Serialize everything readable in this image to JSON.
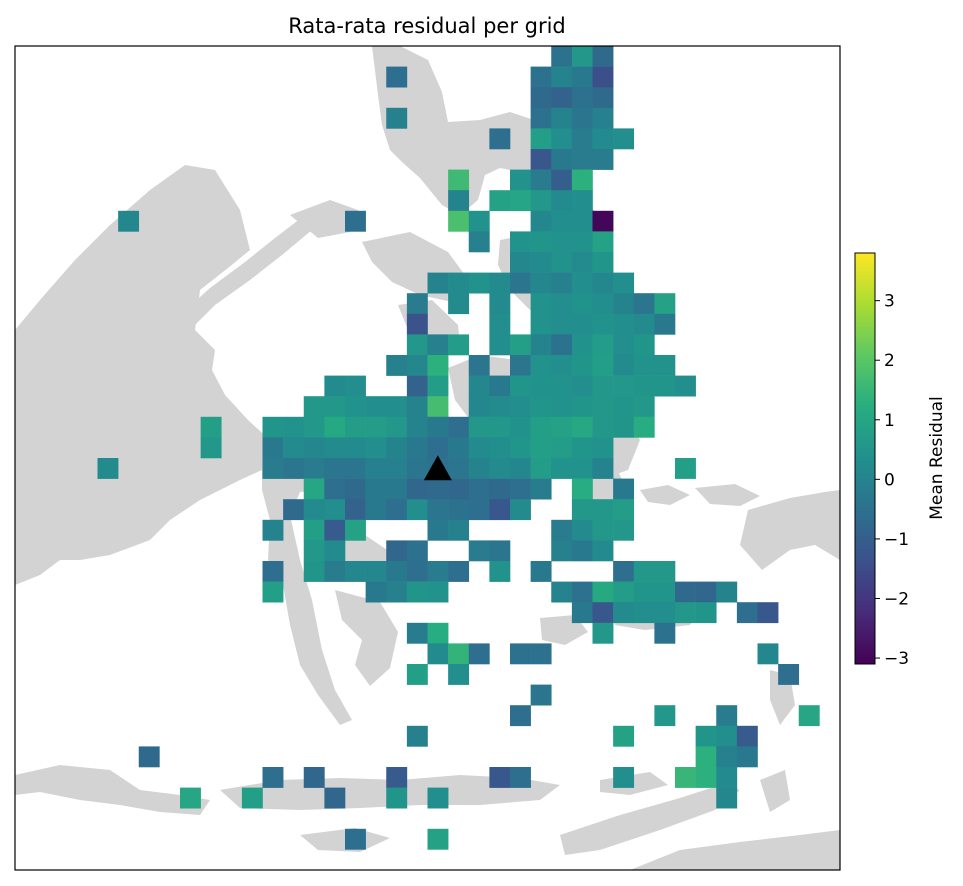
{
  "chart_data": {
    "type": "heatmap",
    "title": "Rata-rata residual per grid",
    "colorbar": {
      "label": "Mean Residual",
      "vmin": -3.1,
      "vmax": 3.8,
      "ticks": [
        {
          "value": 3,
          "label": "3"
        },
        {
          "value": 2,
          "label": "2"
        },
        {
          "value": 1,
          "label": "1"
        },
        {
          "value": 0,
          "label": "0"
        },
        {
          "value": -1,
          "label": "−1"
        },
        {
          "value": -2,
          "label": "−2"
        },
        {
          "value": -3,
          "label": "−3"
        }
      ],
      "colormap": "viridis",
      "placement": "right"
    },
    "grid": {
      "columns": 40,
      "rows": 40
    },
    "marker": {
      "shape": "triangle",
      "color": "#000000",
      "col": 20,
      "row": 20
    },
    "cells": [
      [
        26,
        0,
        -0.5
      ],
      [
        27,
        0,
        0.6
      ],
      [
        28,
        0,
        -0.7
      ],
      [
        18,
        1,
        -0.6
      ],
      [
        25,
        1,
        -0.5
      ],
      [
        26,
        1,
        0.0
      ],
      [
        27,
        1,
        -0.3
      ],
      [
        28,
        1,
        -1.4
      ],
      [
        25,
        2,
        -0.7
      ],
      [
        26,
        2,
        -0.9
      ],
      [
        27,
        2,
        -0.5
      ],
      [
        28,
        2,
        -0.7
      ],
      [
        18,
        3,
        -0.1
      ],
      [
        25,
        3,
        -0.5
      ],
      [
        26,
        3,
        0.0
      ],
      [
        27,
        3,
        -0.4
      ],
      [
        28,
        3,
        -0.1
      ],
      [
        23,
        4,
        -0.6
      ],
      [
        25,
        4,
        0.8
      ],
      [
        26,
        4,
        0.3
      ],
      [
        27,
        4,
        -0.2
      ],
      [
        28,
        4,
        0.2
      ],
      [
        29,
        4,
        0.3
      ],
      [
        25,
        5,
        -1.2
      ],
      [
        26,
        5,
        -0.3
      ],
      [
        27,
        5,
        -0.2
      ],
      [
        28,
        5,
        -0.2
      ],
      [
        21,
        6,
        1.6
      ],
      [
        24,
        6,
        0.4
      ],
      [
        25,
        6,
        -0.2
      ],
      [
        26,
        6,
        -1.0
      ],
      [
        27,
        6,
        1.3
      ],
      [
        21,
        7,
        0.0
      ],
      [
        23,
        7,
        0.9
      ],
      [
        24,
        7,
        1.0
      ],
      [
        25,
        7,
        0.6
      ],
      [
        26,
        7,
        0.2
      ],
      [
        27,
        7,
        0.3
      ],
      [
        5,
        8,
        0.1
      ],
      [
        16,
        8,
        -0.6
      ],
      [
        21,
        8,
        1.8
      ],
      [
        22,
        8,
        0.4
      ],
      [
        25,
        8,
        0.1
      ],
      [
        26,
        8,
        0.3
      ],
      [
        27,
        8,
        0.3
      ],
      [
        28,
        8,
        -3.0
      ],
      [
        22,
        9,
        -0.1
      ],
      [
        24,
        9,
        0.4
      ],
      [
        25,
        9,
        0.5
      ],
      [
        26,
        9,
        0.4
      ],
      [
        27,
        9,
        0.4
      ],
      [
        28,
        9,
        0.9
      ],
      [
        24,
        10,
        0.1
      ],
      [
        25,
        10,
        0.2
      ],
      [
        26,
        10,
        0.4
      ],
      [
        27,
        10,
        0.2
      ],
      [
        28,
        10,
        0.5
      ],
      [
        20,
        11,
        0.0
      ],
      [
        21,
        11,
        0.2
      ],
      [
        22,
        11,
        0.4
      ],
      [
        23,
        11,
        0.2
      ],
      [
        24,
        11,
        -0.4
      ],
      [
        25,
        11,
        0.1
      ],
      [
        26,
        11,
        -0.1
      ],
      [
        27,
        11,
        0.3
      ],
      [
        28,
        11,
        0.1
      ],
      [
        29,
        11,
        0.3
      ],
      [
        19,
        12,
        -0.2
      ],
      [
        21,
        12,
        0.2
      ],
      [
        23,
        12,
        0.2
      ],
      [
        25,
        12,
        0.4
      ],
      [
        26,
        12,
        0.3
      ],
      [
        27,
        12,
        0.4
      ],
      [
        28,
        12,
        0.3
      ],
      [
        29,
        12,
        0.0
      ],
      [
        30,
        12,
        -0.4
      ],
      [
        31,
        12,
        0.9
      ],
      [
        19,
        13,
        -1.3
      ],
      [
        23,
        13,
        0.3
      ],
      [
        25,
        13,
        0.4
      ],
      [
        26,
        13,
        0.3
      ],
      [
        27,
        13,
        0.3
      ],
      [
        28,
        13,
        0.4
      ],
      [
        29,
        13,
        0.3
      ],
      [
        30,
        13,
        0.2
      ],
      [
        31,
        13,
        -0.3
      ],
      [
        19,
        14,
        0.6
      ],
      [
        20,
        14,
        -0.1
      ],
      [
        21,
        14,
        0.7
      ],
      [
        23,
        14,
        0.3
      ],
      [
        24,
        14,
        0.8
      ],
      [
        25,
        14,
        0.0
      ],
      [
        26,
        14,
        -0.5
      ],
      [
        27,
        14,
        0.4
      ],
      [
        28,
        14,
        0.7
      ],
      [
        29,
        14,
        0.3
      ],
      [
        30,
        14,
        0.5
      ],
      [
        18,
        15,
        -0.1
      ],
      [
        19,
        15,
        0.1
      ],
      [
        20,
        15,
        1.3
      ],
      [
        22,
        15,
        -0.4
      ],
      [
        24,
        15,
        -0.4
      ],
      [
        25,
        15,
        0.4
      ],
      [
        26,
        15,
        0.3
      ],
      [
        27,
        15,
        0.5
      ],
      [
        28,
        15,
        0.8
      ],
      [
        29,
        15,
        0.2
      ],
      [
        30,
        15,
        0.4
      ],
      [
        31,
        15,
        0.4
      ],
      [
        15,
        16,
        0.2
      ],
      [
        16,
        16,
        0.3
      ],
      [
        19,
        16,
        -0.9
      ],
      [
        20,
        16,
        0.7
      ],
      [
        22,
        16,
        0.1
      ],
      [
        23,
        16,
        -0.3
      ],
      [
        24,
        16,
        0.5
      ],
      [
        25,
        16,
        0.4
      ],
      [
        26,
        16,
        0.4
      ],
      [
        27,
        16,
        0.3
      ],
      [
        28,
        16,
        0.6
      ],
      [
        29,
        16,
        0.6
      ],
      [
        30,
        16,
        0.5
      ],
      [
        31,
        16,
        0.5
      ],
      [
        32,
        16,
        0.3
      ],
      [
        14,
        17,
        0.6
      ],
      [
        15,
        17,
        0.6
      ],
      [
        16,
        17,
        0.4
      ],
      [
        17,
        17,
        0.3
      ],
      [
        18,
        17,
        0.3
      ],
      [
        19,
        17,
        0.0
      ],
      [
        20,
        17,
        1.7
      ],
      [
        22,
        17,
        0.1
      ],
      [
        23,
        17,
        0.2
      ],
      [
        24,
        17,
        0.3
      ],
      [
        25,
        17,
        0.5
      ],
      [
        26,
        17,
        0.4
      ],
      [
        27,
        17,
        0.5
      ],
      [
        28,
        17,
        0.6
      ],
      [
        29,
        17,
        0.5
      ],
      [
        30,
        17,
        0.6
      ],
      [
        9,
        18,
        0.8
      ],
      [
        12,
        18,
        0.5
      ],
      [
        13,
        18,
        0.4
      ],
      [
        14,
        18,
        0.6
      ],
      [
        15,
        18,
        1.1
      ],
      [
        16,
        18,
        0.7
      ],
      [
        17,
        18,
        0.7
      ],
      [
        18,
        18,
        0.6
      ],
      [
        19,
        18,
        0.0
      ],
      [
        20,
        18,
        -0.3
      ],
      [
        21,
        18,
        -0.6
      ],
      [
        22,
        18,
        0.6
      ],
      [
        23,
        18,
        0.6
      ],
      [
        24,
        18,
        0.4
      ],
      [
        25,
        18,
        0.8
      ],
      [
        26,
        18,
        0.9
      ],
      [
        27,
        18,
        1.1
      ],
      [
        28,
        18,
        0.6
      ],
      [
        29,
        18,
        0.5
      ],
      [
        30,
        18,
        1.2
      ],
      [
        9,
        19,
        0.6
      ],
      [
        12,
        19,
        -0.3
      ],
      [
        13,
        19,
        0.2
      ],
      [
        14,
        19,
        0.1
      ],
      [
        15,
        19,
        0.2
      ],
      [
        16,
        19,
        0.2
      ],
      [
        17,
        19,
        0.3
      ],
      [
        18,
        19,
        0.0
      ],
      [
        19,
        19,
        -0.3
      ],
      [
        20,
        19,
        -0.6
      ],
      [
        21,
        19,
        -0.3
      ],
      [
        22,
        19,
        0.2
      ],
      [
        23,
        19,
        0.3
      ],
      [
        24,
        19,
        0.5
      ],
      [
        25,
        19,
        0.8
      ],
      [
        26,
        19,
        0.7
      ],
      [
        27,
        19,
        0.5
      ],
      [
        28,
        19,
        0.4
      ],
      [
        4,
        20,
        0.2
      ],
      [
        12,
        20,
        -0.2
      ],
      [
        13,
        20,
        -0.4
      ],
      [
        14,
        20,
        -0.2
      ],
      [
        15,
        20,
        -0.4
      ],
      [
        16,
        20,
        -0.4
      ],
      [
        17,
        20,
        -0.1
      ],
      [
        18,
        20,
        -0.1
      ],
      [
        19,
        20,
        -0.4
      ],
      [
        20,
        20,
        -0.5
      ],
      [
        21,
        20,
        -0.4
      ],
      [
        22,
        20,
        0.0
      ],
      [
        23,
        20,
        0.2
      ],
      [
        24,
        20,
        0.1
      ],
      [
        25,
        20,
        0.7
      ],
      [
        26,
        20,
        0.4
      ],
      [
        27,
        20,
        0.4
      ],
      [
        28,
        20,
        0.0
      ],
      [
        32,
        20,
        0.8
      ],
      [
        14,
        21,
        1.0
      ],
      [
        15,
        21,
        -0.6
      ],
      [
        16,
        21,
        -0.7
      ],
      [
        17,
        21,
        -0.3
      ],
      [
        18,
        21,
        -0.3
      ],
      [
        19,
        21,
        -0.8
      ],
      [
        20,
        21,
        -0.7
      ],
      [
        21,
        21,
        -0.8
      ],
      [
        22,
        21,
        -0.6
      ],
      [
        23,
        21,
        -0.7
      ],
      [
        24,
        21,
        -0.6
      ],
      [
        25,
        21,
        -0.2
      ],
      [
        27,
        21,
        1.2
      ],
      [
        29,
        21,
        -0.3
      ],
      [
        13,
        22,
        -0.7
      ],
      [
        14,
        22,
        0.2
      ],
      [
        15,
        22,
        0.3
      ],
      [
        16,
        22,
        -0.9
      ],
      [
        17,
        22,
        -0.3
      ],
      [
        18,
        22,
        -0.6
      ],
      [
        19,
        22,
        0.3
      ],
      [
        20,
        22,
        -0.4
      ],
      [
        21,
        22,
        -0.5
      ],
      [
        22,
        22,
        -0.6
      ],
      [
        23,
        22,
        -1.2
      ],
      [
        24,
        22,
        0.2
      ],
      [
        27,
        22,
        0.6
      ],
      [
        28,
        22,
        0.6
      ],
      [
        29,
        22,
        0.7
      ],
      [
        12,
        23,
        0.0
      ],
      [
        14,
        23,
        0.8
      ],
      [
        15,
        23,
        -1.1
      ],
      [
        16,
        23,
        0.9
      ],
      [
        20,
        23,
        -0.3
      ],
      [
        21,
        23,
        -0.1
      ],
      [
        26,
        23,
        -0.2
      ],
      [
        27,
        23,
        0.2
      ],
      [
        28,
        23,
        0.6
      ],
      [
        29,
        23,
        0.6
      ],
      [
        14,
        24,
        0.6
      ],
      [
        15,
        24,
        0.2
      ],
      [
        18,
        24,
        -0.8
      ],
      [
        19,
        24,
        -0.5
      ],
      [
        22,
        24,
        -0.2
      ],
      [
        23,
        24,
        -0.4
      ],
      [
        26,
        24,
        -0.1
      ],
      [
        27,
        24,
        -0.3
      ],
      [
        28,
        24,
        0.2
      ],
      [
        12,
        25,
        -0.6
      ],
      [
        14,
        25,
        0.5
      ],
      [
        15,
        25,
        -0.2
      ],
      [
        16,
        25,
        0.1
      ],
      [
        17,
        25,
        0.1
      ],
      [
        18,
        25,
        -0.3
      ],
      [
        19,
        25,
        -0.6
      ],
      [
        20,
        25,
        -0.2
      ],
      [
        21,
        25,
        -0.6
      ],
      [
        23,
        25,
        0.4
      ],
      [
        25,
        25,
        -0.3
      ],
      [
        29,
        25,
        -0.6
      ],
      [
        30,
        25,
        0.6
      ],
      [
        31,
        25,
        0.6
      ],
      [
        12,
        26,
        0.8
      ],
      [
        17,
        26,
        -0.3
      ],
      [
        18,
        26,
        -0.1
      ],
      [
        19,
        26,
        0.5
      ],
      [
        20,
        26,
        0.4
      ],
      [
        26,
        26,
        0.0
      ],
      [
        27,
        26,
        -0.5
      ],
      [
        28,
        26,
        1.1
      ],
      [
        29,
        26,
        0.7
      ],
      [
        30,
        26,
        0.5
      ],
      [
        31,
        26,
        0.5
      ],
      [
        32,
        26,
        -0.7
      ],
      [
        33,
        26,
        -0.8
      ],
      [
        34,
        26,
        0.0
      ],
      [
        27,
        27,
        -0.3
      ],
      [
        28,
        27,
        -1.2
      ],
      [
        29,
        27,
        0.2
      ],
      [
        30,
        27,
        0.3
      ],
      [
        31,
        27,
        0.3
      ],
      [
        32,
        27,
        0.6
      ],
      [
        33,
        27,
        0.5
      ],
      [
        35,
        27,
        -0.6
      ],
      [
        36,
        27,
        -1.2
      ],
      [
        19,
        28,
        -0.2
      ],
      [
        20,
        28,
        1.2
      ],
      [
        28,
        28,
        0.6
      ],
      [
        31,
        28,
        -0.5
      ],
      [
        20,
        29,
        0.2
      ],
      [
        21,
        29,
        1.4
      ],
      [
        22,
        29,
        -0.6
      ],
      [
        24,
        29,
        -0.5
      ],
      [
        25,
        29,
        -0.5
      ],
      [
        36,
        29,
        0.1
      ],
      [
        19,
        30,
        0.8
      ],
      [
        21,
        30,
        0.3
      ],
      [
        37,
        30,
        -0.6
      ],
      [
        25,
        31,
        -0.4
      ],
      [
        24,
        32,
        -0.6
      ],
      [
        31,
        32,
        0.6
      ],
      [
        34,
        32,
        -0.2
      ],
      [
        38,
        32,
        1.0
      ],
      [
        19,
        33,
        -0.1
      ],
      [
        29,
        33,
        0.9
      ],
      [
        33,
        33,
        0.5
      ],
      [
        34,
        33,
        0.3
      ],
      [
        35,
        33,
        -1.1
      ],
      [
        6,
        34,
        -0.7
      ],
      [
        33,
        34,
        1.3
      ],
      [
        34,
        34,
        -0.1
      ],
      [
        35,
        34,
        -0.3
      ],
      [
        12,
        35,
        -0.6
      ],
      [
        14,
        35,
        -0.8
      ],
      [
        18,
        35,
        -1.1
      ],
      [
        23,
        35,
        -1.2
      ],
      [
        24,
        35,
        -0.6
      ],
      [
        29,
        35,
        0.3
      ],
      [
        32,
        35,
        1.5
      ],
      [
        33,
        35,
        1.3
      ],
      [
        34,
        35,
        0.2
      ],
      [
        8,
        36,
        1.0
      ],
      [
        11,
        36,
        0.8
      ],
      [
        15,
        36,
        -0.8
      ],
      [
        18,
        36,
        0.5
      ],
      [
        20,
        36,
        0.3
      ],
      [
        34,
        36,
        0.1
      ],
      [
        16,
        38,
        -0.6
      ],
      [
        20,
        38,
        0.9
      ]
    ]
  },
  "map": {
    "land_color": "#d3d3d3",
    "marker_color": "#000000"
  }
}
